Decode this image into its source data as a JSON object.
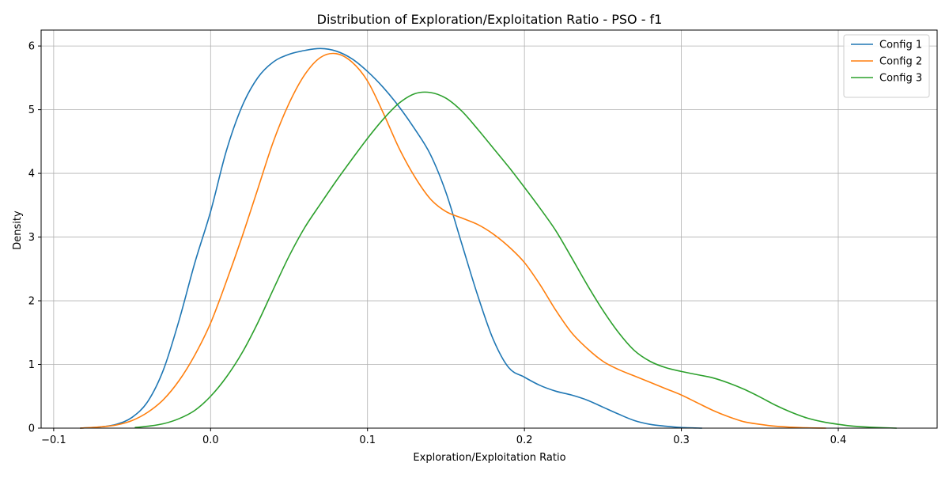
{
  "chart_data": {
    "type": "line",
    "title": "Distribution of Exploration/Exploitation Ratio - PSO - f1",
    "xlabel": "Exploration/Exploitation Ratio",
    "ylabel": "Density",
    "xlim": [
      -0.108,
      0.463
    ],
    "ylim": [
      0,
      6.25
    ],
    "xticks": [
      -0.1,
      0.0,
      0.1,
      0.2,
      0.3,
      0.4
    ],
    "xtick_labels": [
      "−0.1",
      "0.0",
      "0.1",
      "0.2",
      "0.3",
      "0.4"
    ],
    "yticks": [
      0,
      1,
      2,
      3,
      4,
      5,
      6
    ],
    "ytick_labels": [
      "0",
      "1",
      "2",
      "3",
      "4",
      "5",
      "6"
    ],
    "grid": true,
    "legend_position": "top-right",
    "series": [
      {
        "name": "Config 1",
        "color": "#1f77b4",
        "x": [
          -0.083,
          -0.07,
          -0.06,
          -0.05,
          -0.04,
          -0.03,
          -0.02,
          -0.01,
          0.0,
          0.01,
          0.02,
          0.03,
          0.04,
          0.05,
          0.06,
          0.07,
          0.08,
          0.09,
          0.1,
          0.11,
          0.12,
          0.13,
          0.14,
          0.15,
          0.16,
          0.17,
          0.18,
          0.19,
          0.2,
          0.21,
          0.22,
          0.23,
          0.24,
          0.25,
          0.26,
          0.27,
          0.28,
          0.29,
          0.3,
          0.313
        ],
        "y": [
          0.0,
          0.02,
          0.06,
          0.17,
          0.42,
          0.92,
          1.7,
          2.6,
          3.4,
          4.35,
          5.05,
          5.5,
          5.75,
          5.87,
          5.93,
          5.96,
          5.92,
          5.8,
          5.6,
          5.35,
          5.05,
          4.7,
          4.3,
          3.7,
          2.9,
          2.1,
          1.4,
          0.95,
          0.8,
          0.67,
          0.58,
          0.52,
          0.44,
          0.33,
          0.22,
          0.12,
          0.06,
          0.03,
          0.01,
          0.0
        ]
      },
      {
        "name": "Config 2",
        "color": "#ff7f0e",
        "x": [
          -0.083,
          -0.07,
          -0.06,
          -0.05,
          -0.04,
          -0.03,
          -0.02,
          -0.01,
          0.0,
          0.01,
          0.02,
          0.03,
          0.04,
          0.05,
          0.06,
          0.07,
          0.08,
          0.09,
          0.1,
          0.11,
          0.12,
          0.13,
          0.14,
          0.15,
          0.16,
          0.17,
          0.18,
          0.19,
          0.2,
          0.21,
          0.22,
          0.23,
          0.24,
          0.25,
          0.26,
          0.27,
          0.28,
          0.29,
          0.3,
          0.31,
          0.32,
          0.33,
          0.34,
          0.35,
          0.36,
          0.37,
          0.38,
          0.392
        ],
        "y": [
          0.0,
          0.02,
          0.05,
          0.12,
          0.25,
          0.45,
          0.75,
          1.15,
          1.65,
          2.3,
          3.0,
          3.75,
          4.5,
          5.1,
          5.55,
          5.82,
          5.88,
          5.75,
          5.45,
          4.95,
          4.4,
          3.95,
          3.6,
          3.4,
          3.3,
          3.2,
          3.05,
          2.85,
          2.6,
          2.25,
          1.85,
          1.5,
          1.25,
          1.05,
          0.92,
          0.82,
          0.72,
          0.62,
          0.52,
          0.4,
          0.28,
          0.18,
          0.1,
          0.06,
          0.03,
          0.015,
          0.005,
          0.0
        ]
      },
      {
        "name": "Config 3",
        "color": "#2ca02c",
        "x": [
          -0.048,
          -0.04,
          -0.03,
          -0.02,
          -0.01,
          0.0,
          0.01,
          0.02,
          0.03,
          0.04,
          0.05,
          0.06,
          0.07,
          0.08,
          0.09,
          0.1,
          0.11,
          0.12,
          0.13,
          0.14,
          0.15,
          0.16,
          0.17,
          0.18,
          0.19,
          0.2,
          0.21,
          0.22,
          0.23,
          0.24,
          0.25,
          0.26,
          0.27,
          0.28,
          0.29,
          0.3,
          0.31,
          0.32,
          0.33,
          0.34,
          0.35,
          0.36,
          0.37,
          0.38,
          0.39,
          0.4,
          0.41,
          0.42,
          0.437
        ],
        "y": [
          0.01,
          0.03,
          0.07,
          0.15,
          0.28,
          0.5,
          0.8,
          1.18,
          1.65,
          2.18,
          2.7,
          3.15,
          3.52,
          3.88,
          4.22,
          4.55,
          4.85,
          5.1,
          5.25,
          5.27,
          5.18,
          4.98,
          4.7,
          4.4,
          4.1,
          3.78,
          3.45,
          3.1,
          2.68,
          2.25,
          1.85,
          1.5,
          1.22,
          1.05,
          0.95,
          0.89,
          0.84,
          0.79,
          0.71,
          0.61,
          0.49,
          0.36,
          0.25,
          0.16,
          0.1,
          0.06,
          0.03,
          0.015,
          0.0
        ]
      }
    ]
  }
}
